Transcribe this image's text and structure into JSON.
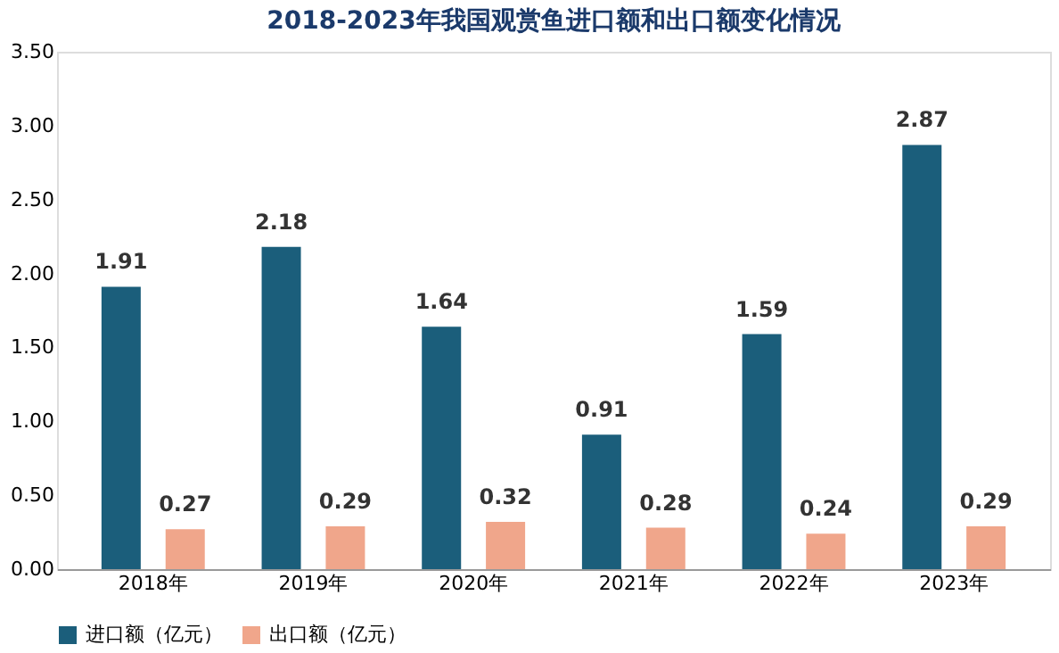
{
  "chart_data": {
    "type": "bar",
    "title": "2018-2023年我国观赏鱼进口额和出口额变化情况",
    "categories": [
      "2018年",
      "2019年",
      "2020年",
      "2021年",
      "2022年",
      "2023年"
    ],
    "series": [
      {
        "name": "进口额（亿元）",
        "color": "#1b5e7b",
        "values": [
          1.91,
          2.18,
          1.64,
          0.91,
          1.59,
          2.87
        ]
      },
      {
        "name": "出口额（亿元）",
        "color": "#f0a68b",
        "values": [
          0.27,
          0.29,
          0.32,
          0.28,
          0.24,
          0.29
        ]
      }
    ],
    "ylim": [
      0,
      3.5
    ],
    "yticks": [
      {
        "value": 0,
        "label": "0.00"
      },
      {
        "value": 0.5,
        "label": "0.50"
      },
      {
        "value": 1,
        "label": "1.00"
      },
      {
        "value": 1.5,
        "label": "1.50"
      },
      {
        "value": 2,
        "label": "2.00"
      },
      {
        "value": 2.5,
        "label": "2.50"
      },
      {
        "value": 3,
        "label": "3.00"
      },
      {
        "value": 3.5,
        "label": "3.50"
      }
    ],
    "data_labels": true,
    "grid": false,
    "legend": "bottom"
  }
}
